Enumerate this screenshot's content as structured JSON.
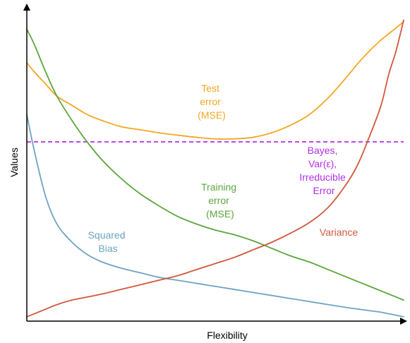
{
  "chart_data": {
    "type": "line",
    "title": "",
    "xlabel": "Flexibility",
    "ylabel": "Values",
    "xlim": [
      0,
      100
    ],
    "ylim": [
      0,
      100
    ],
    "grid": false,
    "legend": "none",
    "x": [
      0,
      2,
      5,
      8,
      12,
      16,
      20,
      25,
      30,
      35,
      40,
      45,
      50,
      55,
      60,
      65,
      70,
      75,
      80,
      85,
      88,
      91,
      94,
      96,
      98,
      100
    ],
    "series": [
      {
        "key": "test",
        "label_lines": [
          "Test",
          "error",
          "(MSE)"
        ],
        "color": "#f5a623",
        "values": [
          84,
          81,
          77,
          73,
          70,
          67,
          65,
          63,
          62,
          61,
          60.2,
          59.5,
          59,
          59,
          59.5,
          61,
          63.5,
          67,
          72.5,
          79.5,
          84,
          88,
          91.5,
          93.5,
          95.5,
          97.5
        ]
      },
      {
        "key": "training",
        "label_lines": [
          "Training",
          "error",
          "(MSE)"
        ],
        "color": "#5ba63c",
        "values": [
          95,
          90,
          81,
          73,
          65,
          58,
          52,
          46,
          41,
          37,
          33.5,
          31,
          29,
          27.5,
          25.5,
          23,
          20.5,
          18.5,
          16,
          13.5,
          12,
          10.5,
          9,
          8,
          7,
          6
        ]
      },
      {
        "key": "bias",
        "label_lines": [
          "Squared",
          "Bias"
        ],
        "color": "#6fa3c0",
        "values": [
          67,
          55,
          40,
          31,
          25,
          21,
          18.5,
          16.5,
          15,
          13.5,
          12.5,
          11.5,
          10.5,
          9.5,
          8.5,
          7.5,
          6.5,
          5.5,
          4.5,
          3.5,
          3,
          2.5,
          2,
          1.5,
          1,
          0.5
        ]
      },
      {
        "key": "variance",
        "label_lines": [
          "Variance"
        ],
        "color": "#d2573c",
        "values": [
          0.5,
          1.5,
          3,
          4.5,
          6,
          7,
          8,
          9.5,
          11,
          12.5,
          14,
          16,
          18,
          20,
          22.5,
          25,
          28,
          31.5,
          36.5,
          44.5,
          51,
          60,
          70,
          80,
          88,
          98
        ]
      }
    ],
    "reference_lines": [
      {
        "key": "bayes",
        "label_lines": [
          "Bayes,",
          "Var(ε),",
          "Irreducible",
          "Error"
        ],
        "color": "#b130e8",
        "y": 58,
        "style": "dashed"
      }
    ]
  }
}
